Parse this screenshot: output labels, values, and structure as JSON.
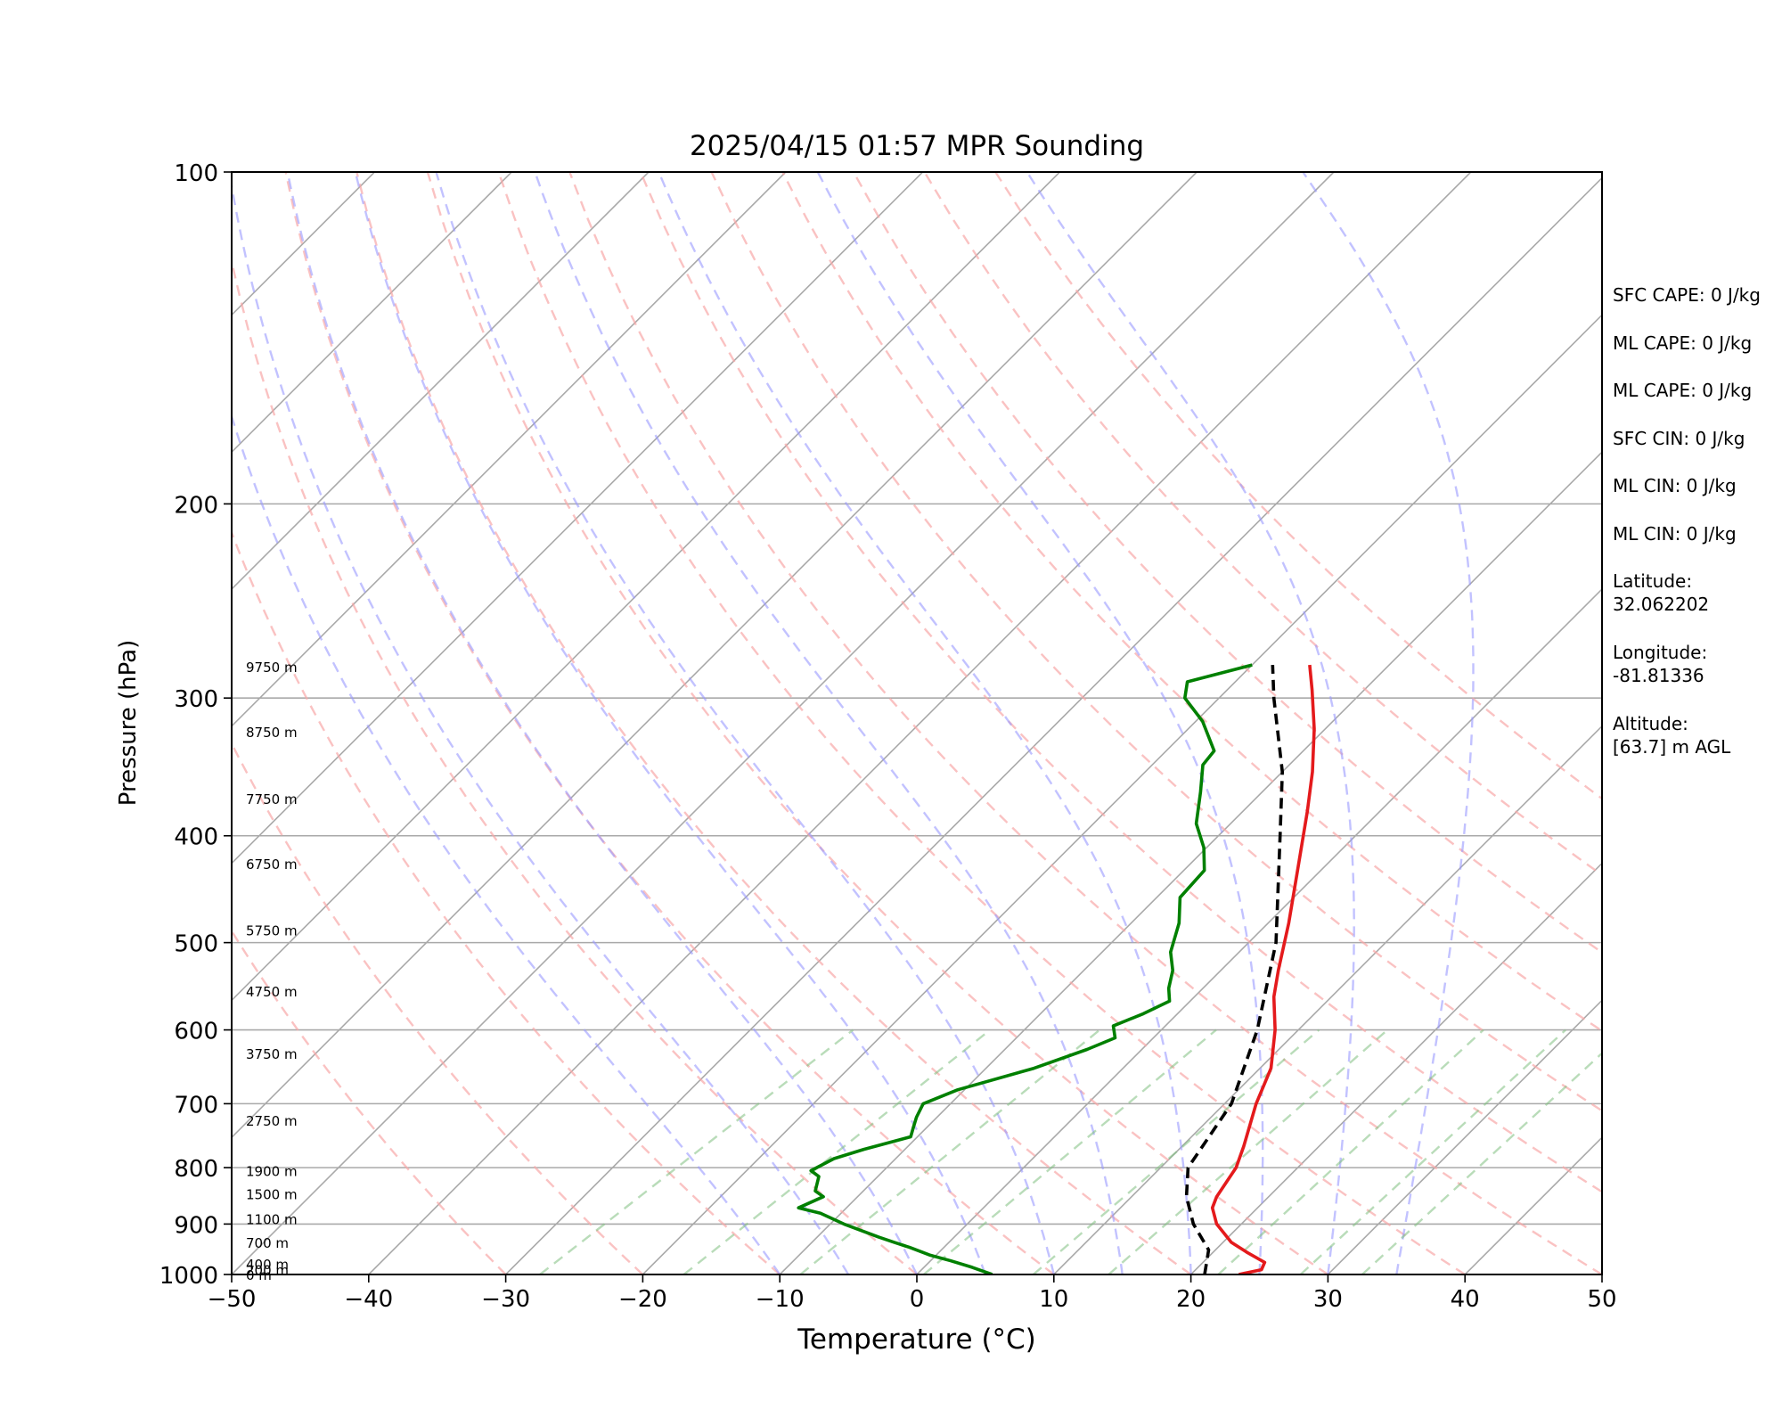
{
  "chart_data": {
    "type": "line",
    "chart_kind": "skew-T log-P",
    "title": "2025/04/15 01:57 MPR Sounding",
    "xlabel": "Temperature (°C)",
    "ylabel": "Pressure (hPa)",
    "xlim": [
      -50,
      50
    ],
    "ylim": [
      1000,
      100
    ],
    "y_scale": "log",
    "x_ticks": [
      -50,
      -40,
      -30,
      -20,
      -10,
      0,
      10,
      20,
      30,
      40,
      50
    ],
    "x_tick_labels": [
      "−50",
      "−40",
      "−30",
      "−20",
      "−10",
      "0",
      "10",
      "20",
      "30",
      "40",
      "50"
    ],
    "y_ticks": [
      1000,
      900,
      800,
      700,
      600,
      500,
      400,
      300,
      200,
      100
    ],
    "y_tick_labels": [
      "1000",
      "900",
      "800",
      "700",
      "600",
      "500",
      "400",
      "300",
      "200",
      "100"
    ],
    "grid": true,
    "isotherms_c": [
      -120,
      -110,
      -100,
      -90,
      -80,
      -70,
      -60,
      -50,
      -40,
      -30,
      -20,
      -10,
      0,
      10,
      20,
      30,
      40,
      50
    ],
    "dry_adiabats_c": [
      -30,
      -20,
      -10,
      0,
      10,
      20,
      30,
      40,
      50,
      60,
      70,
      80,
      90,
      100,
      110
    ],
    "moist_adiabats_c": [
      -10,
      -5,
      0,
      5,
      10,
      15,
      20,
      25,
      30,
      35
    ],
    "mixing_ratio_lines_top_hpa": 600,
    "mixing_ratio_lines_bottom_t_c": [
      -27.5,
      -17,
      -8.5,
      0.5,
      8.5,
      14,
      22,
      28,
      32.5
    ],
    "mixing_ratio_lines_top_t_c": [
      -22.5,
      -12.5,
      -4.5,
      4,
      11.5,
      16.5,
      23.5,
      29.5,
      34
    ],
    "height_labels": [
      {
        "p": 1000,
        "label": "0 m"
      },
      {
        "p": 990,
        "label": "200 m"
      },
      {
        "p": 978,
        "label": "400 m"
      },
      {
        "p": 935,
        "label": "700 m"
      },
      {
        "p": 890,
        "label": "1100 m"
      },
      {
        "p": 845,
        "label": "1500 m"
      },
      {
        "p": 805,
        "label": "1900 m"
      },
      {
        "p": 725,
        "label": "2750 m"
      },
      {
        "p": 630,
        "label": "3750 m"
      },
      {
        "p": 553,
        "label": "4750 m"
      },
      {
        "p": 487,
        "label": "5750 m"
      },
      {
        "p": 424,
        "label": "6750 m"
      },
      {
        "p": 370,
        "label": "7750 m"
      },
      {
        "p": 322,
        "label": "8750 m"
      },
      {
        "p": 281,
        "label": "9750 m"
      }
    ],
    "series": [
      {
        "color": "#e41a1c",
        "points": [
          [
            1000,
            23.5
          ],
          [
            990,
            24.8
          ],
          [
            975,
            24.5
          ],
          [
            955,
            22.5
          ],
          [
            935,
            20.6
          ],
          [
            900,
            18.2
          ],
          [
            870,
            16.7
          ],
          [
            850,
            16.2
          ],
          [
            800,
            15.5
          ],
          [
            765,
            14.5
          ],
          [
            700,
            12.3
          ],
          [
            650,
            10.8
          ],
          [
            600,
            8.3
          ],
          [
            560,
            5.8
          ],
          [
            530,
            4.2
          ],
          [
            480,
            1.5
          ],
          [
            430,
            -1.7
          ],
          [
            380,
            -5.3
          ],
          [
            350,
            -7.8
          ],
          [
            320,
            -10.8
          ],
          [
            295,
            -13.8
          ],
          [
            280,
            -15.8
          ]
        ]
      },
      {
        "color": "#008000",
        "points": [
          [
            1000,
            5.5
          ],
          [
            985,
            3.5
          ],
          [
            972,
            1.5
          ],
          [
            960,
            -0.5
          ],
          [
            945,
            -2.5
          ],
          [
            935,
            -4
          ],
          [
            925,
            -5.5
          ],
          [
            900,
            -9
          ],
          [
            880,
            -11.5
          ],
          [
            870,
            -13.5
          ],
          [
            850,
            -12.5
          ],
          [
            840,
            -13.5
          ],
          [
            815,
            -14.3
          ],
          [
            805,
            -15.3
          ],
          [
            785,
            -14.5
          ],
          [
            770,
            -13
          ],
          [
            750,
            -10.5
          ],
          [
            735,
            -11
          ],
          [
            720,
            -11.5
          ],
          [
            700,
            -12
          ],
          [
            680,
            -10.5
          ],
          [
            650,
            -6.5
          ],
          [
            625,
            -4
          ],
          [
            610,
            -2.8
          ],
          [
            595,
            -3.8
          ],
          [
            580,
            -2.5
          ],
          [
            565,
            -1.5
          ],
          [
            550,
            -2.5
          ],
          [
            530,
            -3.5
          ],
          [
            510,
            -5
          ],
          [
            480,
            -6.5
          ],
          [
            455,
            -8.3
          ],
          [
            430,
            -8.5
          ],
          [
            410,
            -10.2
          ],
          [
            390,
            -12.5
          ],
          [
            365,
            -14.5
          ],
          [
            345,
            -16.3
          ],
          [
            335,
            -16.5
          ],
          [
            315,
            -19.5
          ],
          [
            300,
            -22.5
          ],
          [
            290,
            -23.5
          ],
          [
            280,
            -20
          ]
        ]
      },
      {
        "color": "#000000",
        "dashed": true,
        "points": [
          [
            1000,
            21
          ],
          [
            950,
            19.5
          ],
          [
            900,
            16.5
          ],
          [
            850,
            14
          ],
          [
            800,
            12
          ],
          [
            700,
            10.5
          ],
          [
            600,
            7
          ],
          [
            500,
            2
          ],
          [
            400,
            -5.5
          ],
          [
            350,
            -10
          ],
          [
            300,
            -16
          ],
          [
            280,
            -18.5
          ]
        ]
      }
    ]
  },
  "side_panel": [
    "SFC CAPE: 0 J/kg",
    "ML CAPE: 0 J/kg",
    "ML CAPE: 0 J/kg",
    "SFC CIN: 0 J/kg",
    "ML CIN: 0 J/kg",
    "ML CIN: 0 J/kg",
    "Latitude:\n32.062202",
    "Longitude:\n-81.81336",
    "Altitude:\n[63.7] m AGL"
  ]
}
